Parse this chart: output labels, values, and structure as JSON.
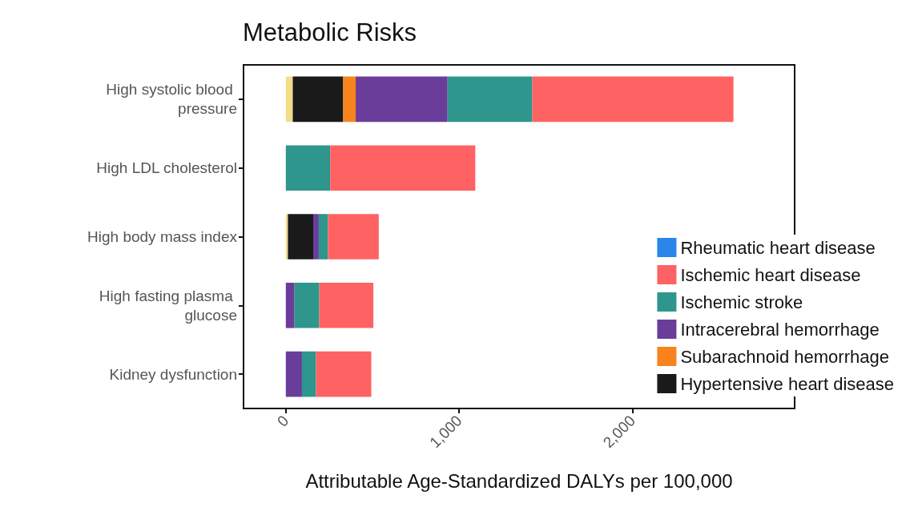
{
  "chart_data": {
    "type": "bar",
    "orientation": "horizontal",
    "stacked": true,
    "title": "Metabolic Risks",
    "xlabel": "Attributable Age-Standardized DALYs per 100,000",
    "categories": [
      "High systolic blood pressure",
      "High LDL cholesterol",
      "High body mass index",
      "High fasting plasma glucose",
      "Kidney dysfunction"
    ],
    "series": [
      {
        "color": "#f3dc8a",
        "values": [
          40,
          null,
          12,
          null,
          null
        ]
      },
      {
        "name": "Hypertensive heart disease",
        "color": "#1a1a1a",
        "values": [
          291,
          null,
          146,
          null,
          null
        ]
      },
      {
        "name": "Subarachnoid hemorrhage",
        "color": "#f8831c",
        "values": [
          72,
          null,
          null,
          null,
          null
        ]
      },
      {
        "name": "Intracerebral hemorrhage",
        "color": "#6a3d9a",
        "values": [
          530,
          null,
          32,
          50,
          93
        ]
      },
      {
        "name": "Ischemic stroke",
        "color": "#2e968c",
        "values": [
          489,
          256,
          53,
          143,
          81
        ]
      },
      {
        "name": "Ischemic heart disease",
        "color": "#ff6262",
        "values": [
          1160,
          837,
          293,
          312,
          319
        ]
      },
      {
        "name": "Rheumatic heart disease",
        "color": "#2a86e8",
        "values": [
          null,
          null,
          null,
          null,
          null
        ]
      }
    ],
    "xlim": [
      -244,
      2935
    ],
    "xticks": [
      {
        "value": 0,
        "label": "0"
      },
      {
        "value": 1000,
        "label": "1,000"
      },
      {
        "value": 2000,
        "label": "2,000"
      }
    ],
    "grid": false,
    "legend": "bottom right"
  }
}
